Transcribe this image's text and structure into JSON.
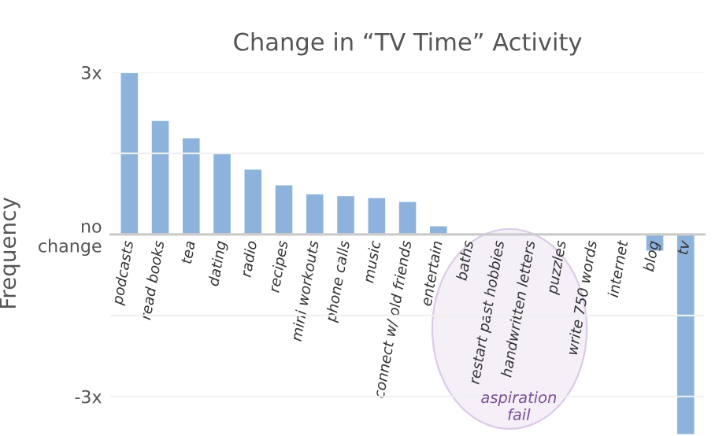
{
  "chart_data": {
    "type": "bar",
    "title": "Change in “TV Time” Activity",
    "ylabel": "Frequency",
    "categories": [
      "podcasts",
      "read books",
      "tea",
      "dating",
      "radio",
      "recipes",
      "mini workouts",
      "phone calls",
      "music",
      "connect w/ old friends",
      "entertain",
      "baths",
      "restart past hobbies",
      "handwritten letters",
      "puzzles",
      "write 750 words",
      "internet",
      "blog",
      "tv"
    ],
    "values": [
      3.0,
      2.1,
      1.78,
      1.5,
      1.2,
      0.91,
      0.74,
      0.71,
      0.67,
      0.6,
      0.15,
      0,
      0,
      0,
      0,
      0,
      0,
      -0.3,
      -3.7
    ],
    "color": "#8db3dd",
    "ylim": [
      -3.7,
      3
    ],
    "yticks": [
      {
        "value": 3,
        "label": "3x"
      },
      {
        "value": 1.5,
        "label": null
      },
      {
        "value": 0,
        "label": "no\nchange"
      },
      {
        "value": -1.5,
        "label": null
      },
      {
        "value": -3,
        "label": "-3x"
      }
    ],
    "grid": "y",
    "annotations": [
      "aspiration\nfail"
    ]
  }
}
